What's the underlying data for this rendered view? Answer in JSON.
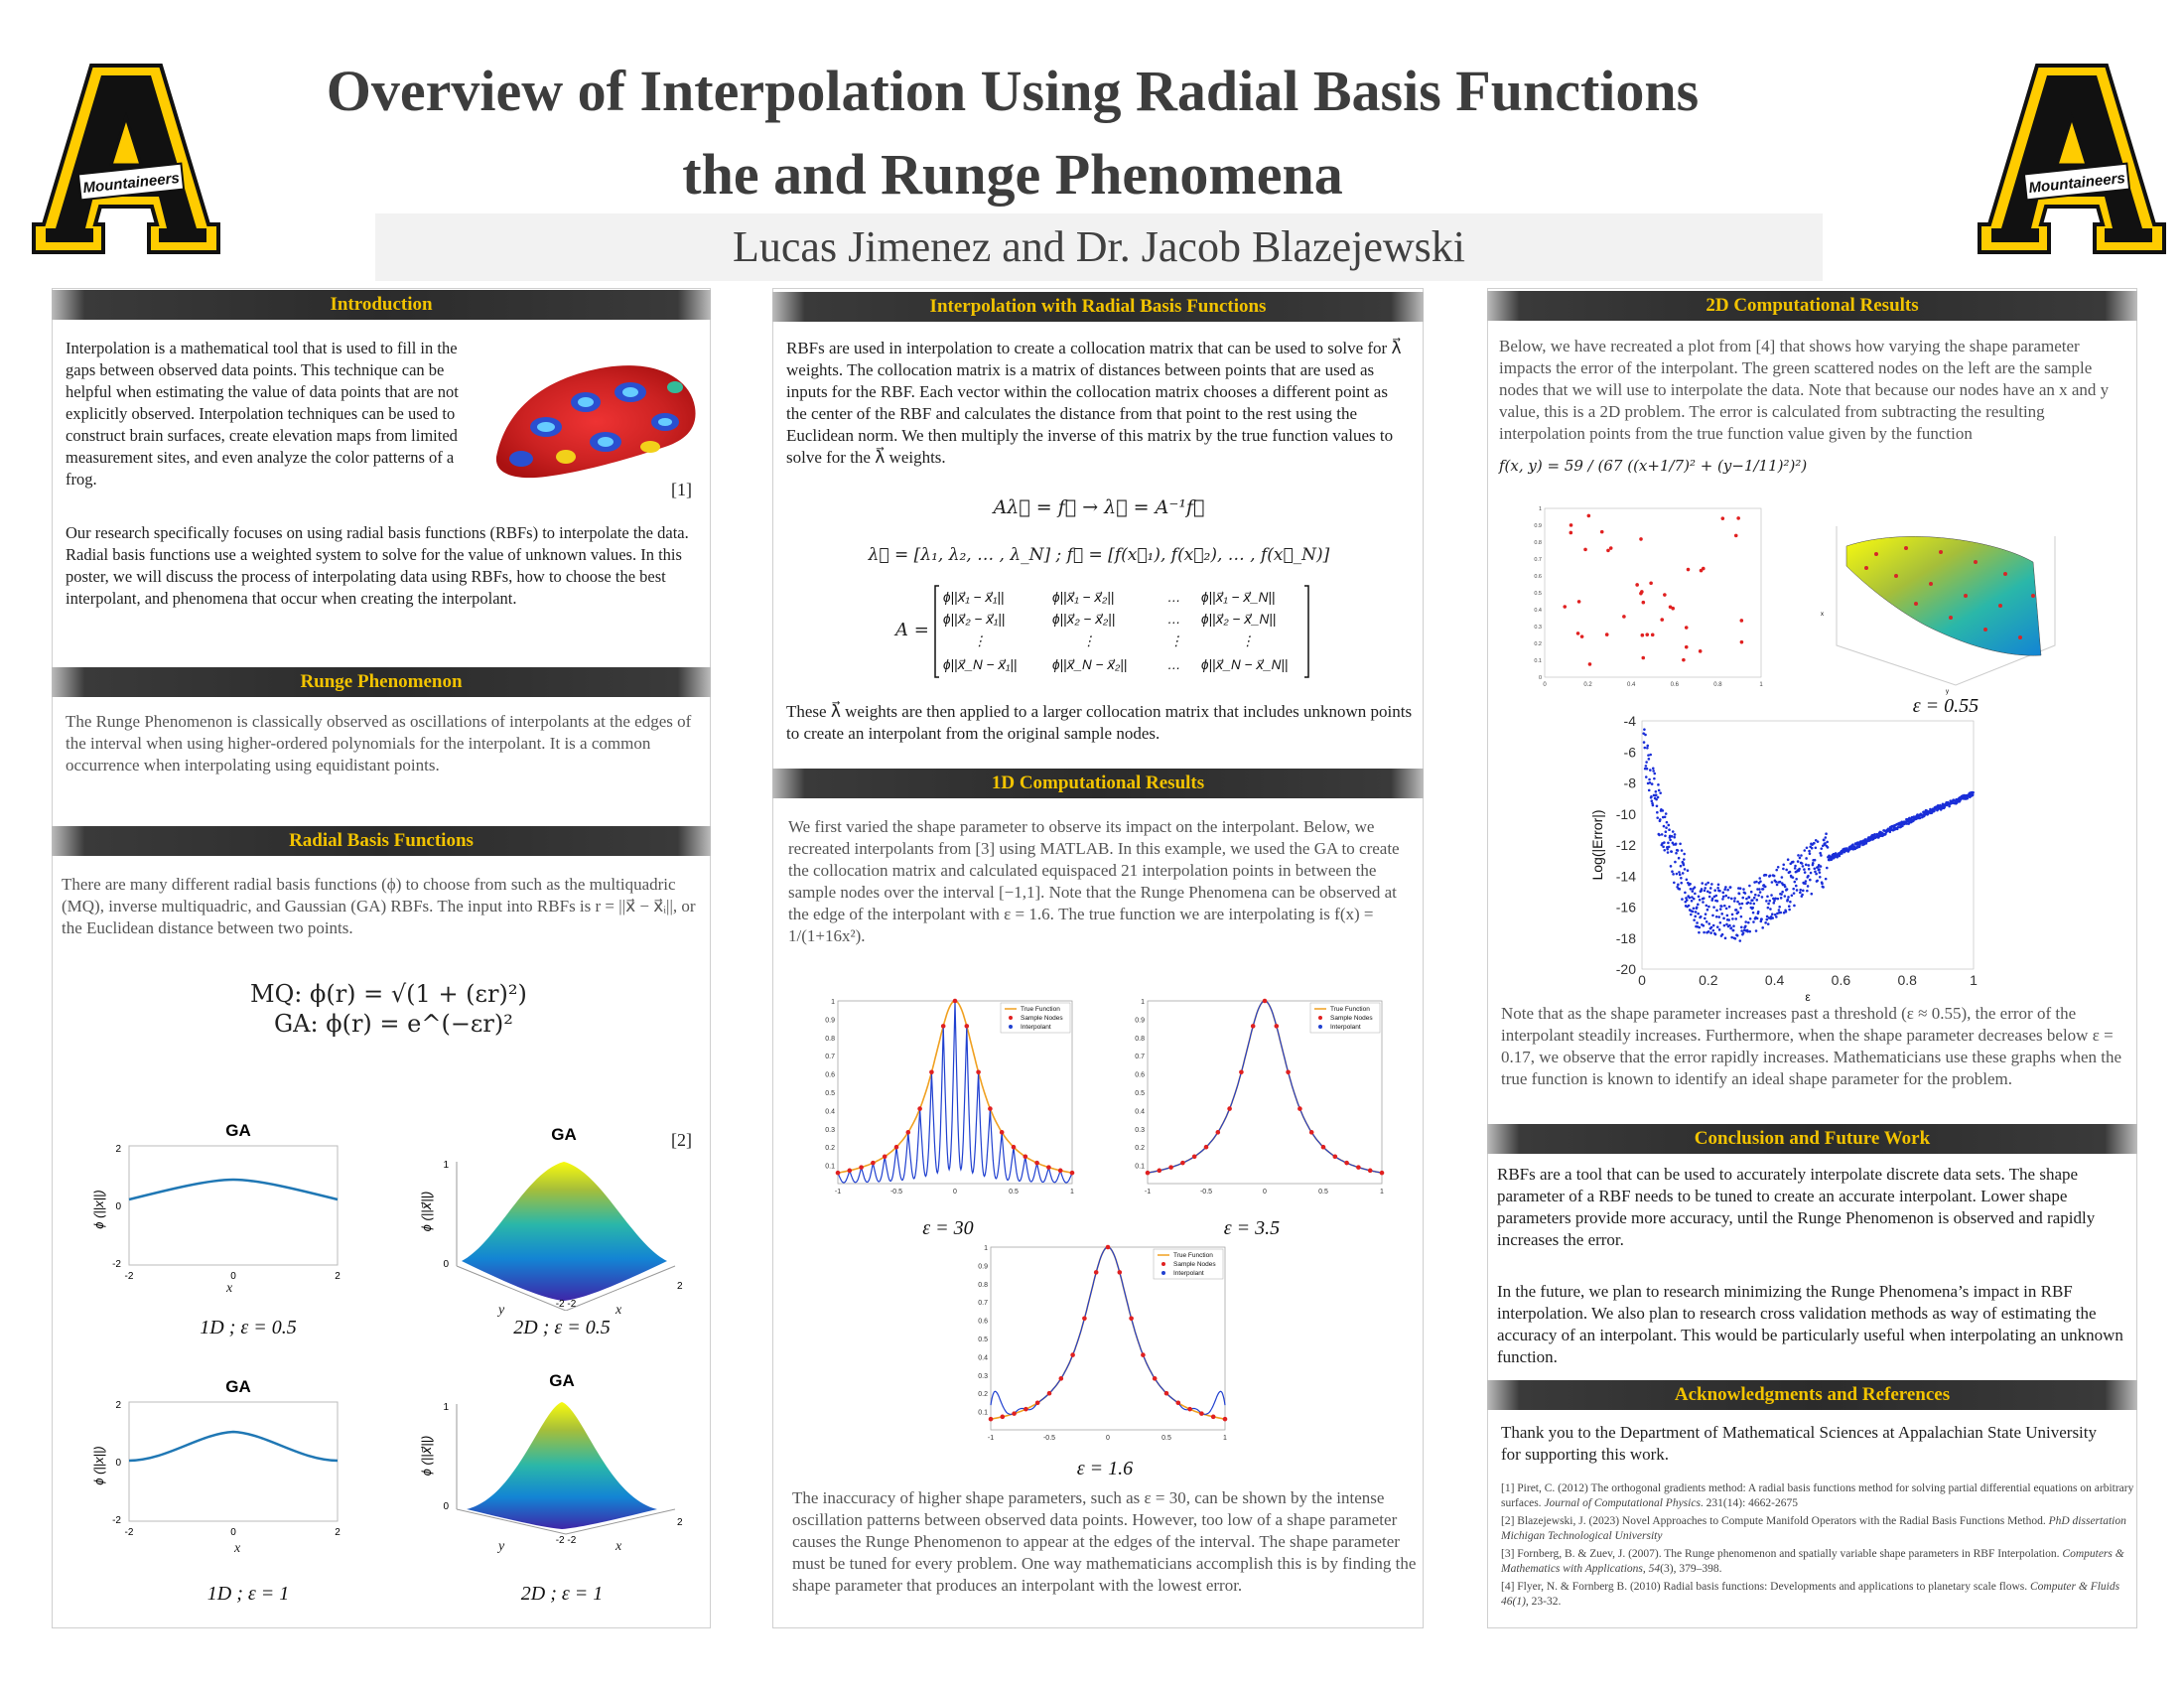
{
  "header": {
    "title_line1": "Overview of Interpolation Using Radial Basis Functions",
    "title_line2": "the and Runge Phenomena",
    "authors": "Lucas Jimenez and Dr. Jacob Blazejewski",
    "logo_text": "Mountaineers"
  },
  "colors": {
    "accent_gold": "#f2c300",
    "header_dark": "#2b2b2b",
    "logo_gold": "#ffcc00"
  },
  "introduction": {
    "heading": "Introduction",
    "p1": "Interpolation is a mathematical tool that is used to fill in the gaps between observed data points. This technique can be helpful when estimating the value of data points that are not explicitly observed. Interpolation techniques can be used to construct brain surfaces, create elevation maps from limited measurement sites, and even analyze the color patterns of a frog.",
    "ref": "[1]",
    "p2": "Our research specifically focuses on using radial basis functions (RBFs) to interpolate the data. Radial basis functions use a weighted system to solve for the value of unknown values. In this poster, we will discuss the process of interpolating data using RBFs, how to choose the best interpolant, and phenomena that occur when creating the interpolant."
  },
  "runge": {
    "heading": "Runge Phenomenon",
    "p1": "The Runge Phenomenon is classically observed as oscillations of interpolants at the edges of the interval when using higher-ordered polynomials for the interpolant. It is a common occurrence when interpolating using equidistant points."
  },
  "rbf": {
    "heading": "Radial Basis Functions",
    "p1": "There are many different radial basis functions (ϕ) to choose from such as the multiquadric (MQ), inverse multiquadric, and Gaussian (GA) RBFs. The input into RBFs is r = ||x⃗ − x⃗ᵢ||, or the Euclidean distance between two points.",
    "eq_mq": "MQ:  ϕ(r) = √(1 + (εr)²)",
    "eq_ga": "GA:  ϕ(r) = e^(−εr)²",
    "ref": "[2]",
    "plot_title": "GA",
    "ylabel_1d": "ϕ (||x||)",
    "ylabel_2d": "ϕ (||x⃗||)",
    "xlabel": "x",
    "ylabel_y": "y",
    "cap_1": "1D ; ε = 0.5",
    "cap_2": "2D ; ε = 0.5",
    "cap_3": "1D ; ε = 1",
    "cap_4": "2D ; ε = 1"
  },
  "interp": {
    "heading": "Interpolation with Radial Basis Functions",
    "p1": "RBFs are used in interpolation to create a collocation matrix that can be used to solve for λ⃗ weights. The collocation matrix is a matrix of  distances between points that are used as inputs for the RBF. Each vector within the collocation matrix chooses a different point as the center of the RBF and calculates the distance from that point to the rest using the Euclidean norm. We then multiply the inverse of this matrix by the true function values to solve for the λ⃗ weights.",
    "eq1": "Aλ⃗ = f⃗   →   λ⃗ = A⁻¹f⃗",
    "eq2": "λ⃗ = [λ₁, λ₂, … , λ_N] ;   f⃗ = [f(x⃗₁), f(x⃗₂), … , f(x⃗_N)]",
    "matrix_label": "A =",
    "p2": "These λ⃗ weights are then applied to a larger collocation matrix that includes unknown points to create an interpolant from the original sample nodes."
  },
  "comp1d": {
    "heading": "1D Computational Results",
    "p1": "We first varied the shape parameter to observe its impact on the interpolant. Below, we recreated interpolants from [3] using MATLAB. In this example, we used the GA to create the collocation matrix and calculated equispaced 21 interpolation points in between the sample nodes over the interval [−1,1]. Note that the Runge Phenomena can be observed at the edge of the interpolant with ε = 1.6. The true function we are interpolating is f(x) = 1/(1+16x²).",
    "legend": [
      "True Function",
      "Sample Nodes",
      "Interpolant"
    ],
    "cap_a": "ε = 30",
    "cap_b": "ε = 3.5",
    "cap_c": "ε = 1.6",
    "p2": "The inaccuracy of higher shape parameters, such as ε = 30, can be shown by the intense oscillation patterns between observed data points. However, too low of a shape parameter causes the Runge Phenomenon to appear at the edges of the interval. The shape parameter must be tuned for every problem. One way mathematicians accomplish this is by finding the shape parameter that produces an interpolant with the lowest error."
  },
  "comp2d": {
    "heading": "2D Computational Results",
    "p1": "Below, we have recreated a plot from [4] that shows how varying the shape parameter impacts the error of the interpolant. The green scattered nodes on the left are the sample nodes that we will use to interpolate the data. Note that because our nodes have an x and y value, this is a 2D problem. The error is calculated from subtracting the resulting interpolation points from the true function value given by the function",
    "func": "f(x, y) = 59 / (67 ((x+1/7)² + (y−1/11)²)²)",
    "cap_surface": "ε = 0.55",
    "err_ylabel": "Log(|Error|)",
    "err_xlabel": "ε",
    "p2": "Note that as the shape parameter increases past a threshold (ε ≈ 0.55), the error of the interpolant steadily increases. Furthermore, when the shape parameter decreases below ε = 0.17, we observe that the error rapidly increases. Mathematicians use these graphs when the true function is known to identify an ideal shape parameter for the problem."
  },
  "conclusion": {
    "heading": "Conclusion and Future Work",
    "p1": "RBFs are a tool that can be used to accurately interpolate discrete data sets. The shape parameter of a RBF needs to be tuned to create an accurate interpolant. Lower shape parameters provide more accuracy, until the Runge Phenomenon is observed and rapidly increases the error.",
    "p2": "In the future, we plan to research minimizing the Runge Phenomena’s impact in RBF interpolation. We also plan to research cross validation methods as way of estimating the accuracy of an interpolant. This would be particularly useful when interpolating an unknown function."
  },
  "ack": {
    "heading": "Acknowledgments and References",
    "p1": "Thank you to the Department of Mathematical Sciences at Appalachian State University for supporting this work.",
    "refs": [
      {
        "main": "[1] Piret, C. (2012) The orthogonal gradients method: A radial basis functions method for solving partial differential equations on arbitrary surfaces.",
        "src": "Journal of Computational Physics",
        "tail": ". 231(14): 4662-2675"
      },
      {
        "main": "[2] Blazejewski, J. (2023) Novel Approaches to Compute Manifold Operators with the Radial Basis Functions Method.",
        "src": "PhD dissertation Michigan Technological University",
        "tail": ""
      },
      {
        "main": "[3] Fornberg, B. & Zuev, J. (2007). The Runge phenomenon and spatially variable shape parameters in RBF Interpolation.",
        "src": "Computers & Mathematics with Applications, 54",
        "tail": "(3), 379–398."
      },
      {
        "main": "[4] Flyer, N. & Fornberg B. (2010) Radial basis functions: Developments and applications to planetary scale flows.",
        "src": "Computer & Fluids 46(1)",
        "tail": ", 23-32."
      }
    ]
  },
  "chart_data": [
    {
      "type": "line",
      "title": "",
      "series": [
        {
          "name": "True Function",
          "f": "1/(1+16x^2)"
        },
        {
          "name": "Sample Nodes",
          "x": [
            -1,
            -0.9,
            -0.8,
            -0.7,
            -0.6,
            -0.5,
            -0.4,
            -0.3,
            -0.2,
            -0.1,
            0,
            0.1,
            0.2,
            0.3,
            0.4,
            0.5,
            0.6,
            0.7,
            0.8,
            0.9,
            1
          ]
        },
        {
          "name": "Interpolant",
          "shape_parameter": [
            30,
            3.5,
            1.6
          ]
        }
      ],
      "xlim": [
        -1,
        1
      ],
      "ylim": [
        0,
        1
      ],
      "xticks": [
        "-1",
        "-0.5",
        "0",
        "0.5",
        "1"
      ],
      "yticks": [
        "0.1",
        "0.2",
        "0.3",
        "0.4",
        "0.5",
        "0.6",
        "0.7",
        "0.8",
        "0.9",
        "1"
      ]
    },
    {
      "type": "scatter",
      "title": "",
      "xlabel": "ε",
      "ylabel": "Log(|Error|)",
      "xlim": [
        0,
        1
      ],
      "ylim": [
        -20,
        -4
      ],
      "xticks": [
        "0",
        "0.2",
        "0.4",
        "0.6",
        "0.8",
        "1"
      ],
      "yticks": [
        "-4",
        "-6",
        "-8",
        "-10",
        "-12",
        "-14",
        "-16",
        "-18",
        "-20"
      ],
      "trend": {
        "x": [
          0.0,
          0.03,
          0.08,
          0.17,
          0.3,
          0.45,
          0.55,
          0.7,
          0.85,
          1.0
        ],
        "y": [
          -5,
          -8,
          -12,
          -16,
          -16.5,
          -14.5,
          -13,
          -11.5,
          -10,
          -8.7
        ]
      }
    }
  ]
}
